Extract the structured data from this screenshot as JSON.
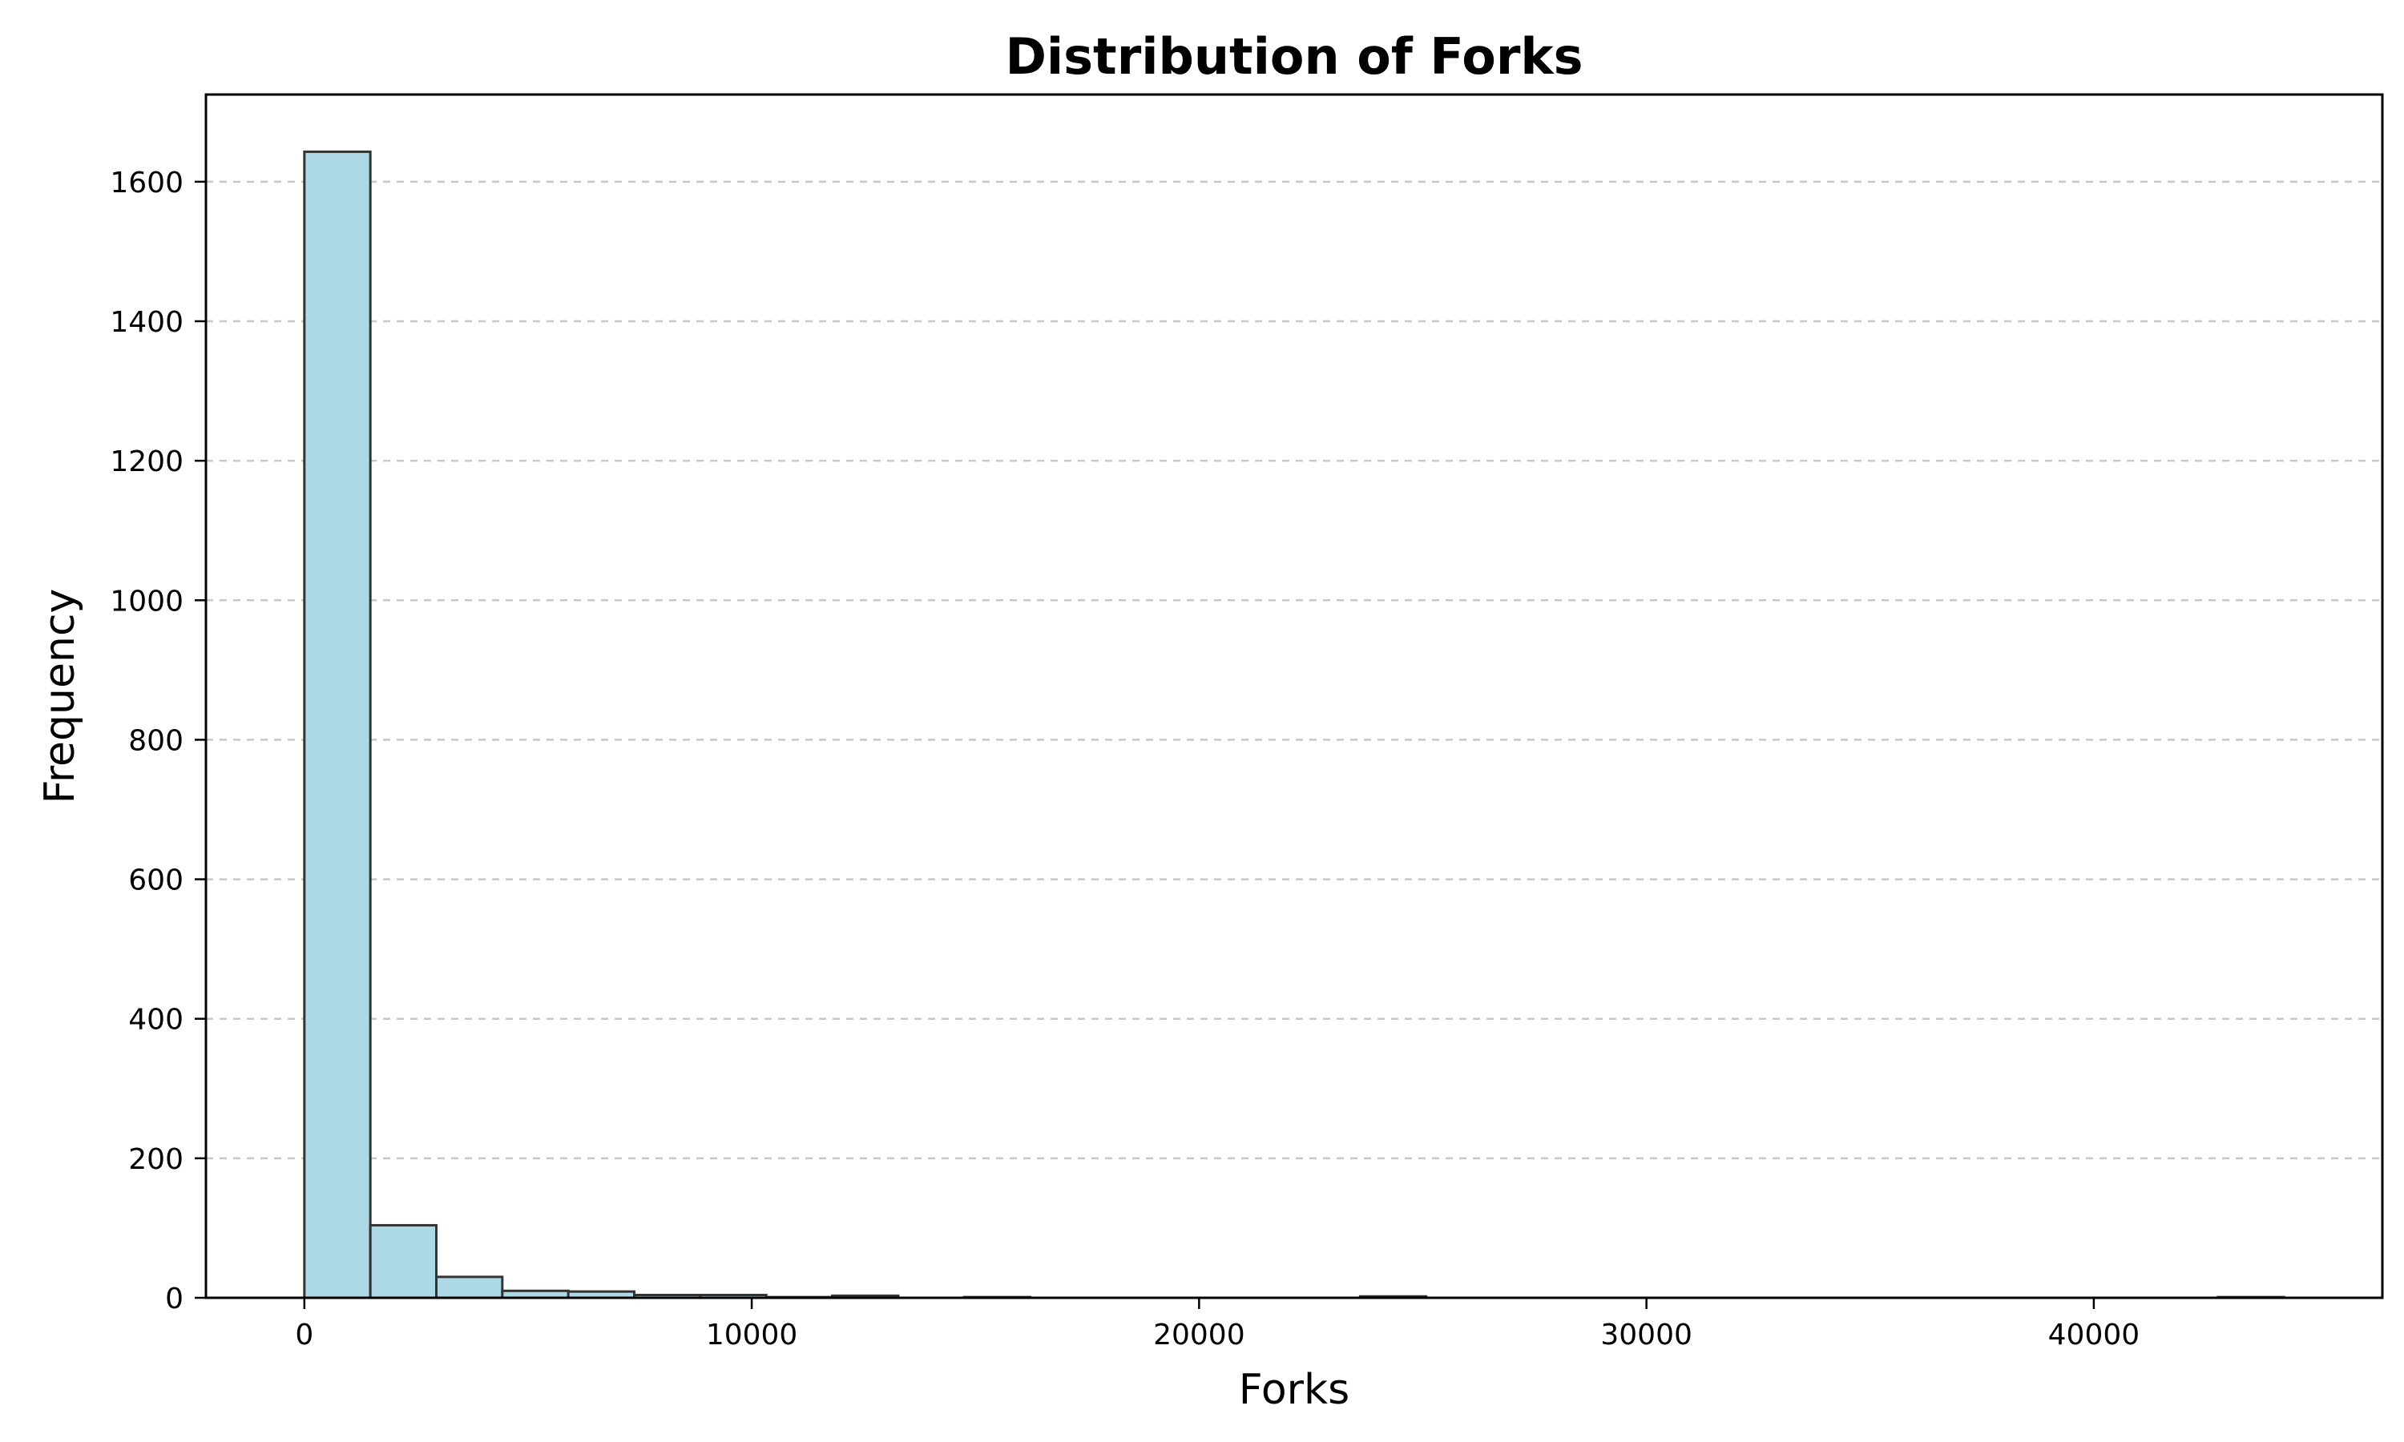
{
  "chart_data": {
    "type": "bar",
    "title": "Distribution of Forks",
    "xlabel": "Forks",
    "ylabel": "Frequency",
    "bins": [
      {
        "x0": 0,
        "x1": 1475,
        "value": 1643
      },
      {
        "x0": 1475,
        "x1": 2950,
        "value": 104
      },
      {
        "x0": 2950,
        "x1": 4425,
        "value": 30
      },
      {
        "x0": 4425,
        "x1": 5900,
        "value": 10
      },
      {
        "x0": 5900,
        "x1": 7375,
        "value": 9
      },
      {
        "x0": 7375,
        "x1": 8850,
        "value": 4
      },
      {
        "x0": 8850,
        "x1": 10325,
        "value": 4
      },
      {
        "x0": 10325,
        "x1": 11800,
        "value": 1
      },
      {
        "x0": 11800,
        "x1": 13275,
        "value": 3
      },
      {
        "x0": 13275,
        "x1": 14750,
        "value": 0
      },
      {
        "x0": 14750,
        "x1": 16225,
        "value": 1
      },
      {
        "x0": 16225,
        "x1": 17700,
        "value": 0
      },
      {
        "x0": 17700,
        "x1": 19175,
        "value": 0
      },
      {
        "x0": 19175,
        "x1": 20650,
        "value": 0
      },
      {
        "x0": 20650,
        "x1": 22125,
        "value": 0
      },
      {
        "x0": 22125,
        "x1": 23600,
        "value": 0
      },
      {
        "x0": 23600,
        "x1": 25075,
        "value": 2
      },
      {
        "x0": 25075,
        "x1": 26550,
        "value": 0
      },
      {
        "x0": 26550,
        "x1": 28025,
        "value": 0
      },
      {
        "x0": 28025,
        "x1": 29500,
        "value": 0
      },
      {
        "x0": 29500,
        "x1": 30975,
        "value": 0
      },
      {
        "x0": 30975,
        "x1": 32450,
        "value": 0
      },
      {
        "x0": 32450,
        "x1": 33925,
        "value": 0
      },
      {
        "x0": 33925,
        "x1": 35400,
        "value": 0
      },
      {
        "x0": 35400,
        "x1": 36875,
        "value": 0
      },
      {
        "x0": 36875,
        "x1": 38350,
        "value": 0
      },
      {
        "x0": 38350,
        "x1": 39825,
        "value": 0
      },
      {
        "x0": 39825,
        "x1": 41300,
        "value": 0
      },
      {
        "x0": 41300,
        "x1": 42775,
        "value": 0
      },
      {
        "x0": 42775,
        "x1": 44250,
        "value": 1
      }
    ],
    "x_ticks": [
      "0",
      "10000",
      "20000",
      "30000",
      "40000"
    ],
    "x_tick_values": [
      0,
      10000,
      20000,
      30000,
      40000
    ],
    "y_ticks": [
      "0",
      "200",
      "400",
      "600",
      "800",
      "1000",
      "1200",
      "1400",
      "1600"
    ],
    "y_tick_values": [
      0,
      200,
      400,
      600,
      800,
      1000,
      1200,
      1400,
      1600
    ],
    "xlim": [
      -2200,
      46450
    ],
    "ylim": [
      0,
      1725
    ],
    "grid": "y-axis dashed",
    "bar_color": "#add8e6",
    "bar_edge_color": "#333333"
  }
}
